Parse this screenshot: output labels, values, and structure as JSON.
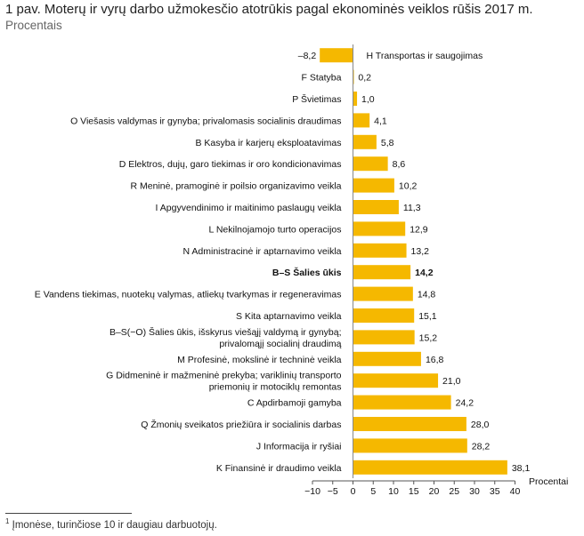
{
  "header": {
    "title": "1 pav. Moterų ir vyrų darbo užmokesčio atotrūkis pagal ekonominės veiklos rūšis 2017 m.",
    "subtitle": "Procentais"
  },
  "footnote": {
    "marker": "1",
    "text": "Įmonėse, turinčiose 10 ir daugiau darbuotojų."
  },
  "chart_data": {
    "type": "bar",
    "orientation": "horizontal",
    "title": "1 pav. Moterų ir vyrų darbo užmokesčio atotrūkis pagal ekonominės veiklos rūšis 2017 m.",
    "subtitle": "Procentais",
    "xlabel": "Procentai",
    "xlim": [
      -10,
      40
    ],
    "xticks": [
      -10,
      -5,
      0,
      5,
      10,
      15,
      20,
      25,
      30,
      35,
      40
    ],
    "tick_labels": [
      "−10",
      "−5",
      "0",
      "5",
      "10",
      "15",
      "20",
      "25",
      "30",
      "35",
      "40"
    ],
    "grid": false,
    "bar_color": "#f5b800",
    "categories": [
      [
        "H Transportas ir saugojimas"
      ],
      [
        "F Statyba"
      ],
      [
        "P Švietimas"
      ],
      [
        "O Viešasis valdymas ir gynyba; privalomasis socialinis draudimas"
      ],
      [
        "B Kasyba ir karjerų eksploatavimas"
      ],
      [
        "D Elektros, dujų, garo tiekimas ir oro kondicionavimas"
      ],
      [
        "R Meninė, pramoginė ir poilsio organizavimo veikla"
      ],
      [
        "I Apgyvendinimo ir maitinimo paslaugų veikla"
      ],
      [
        "L Nekilnojamojo turto operacijos"
      ],
      [
        "N Administracinė ir aptarnavimo veikla"
      ],
      [
        "B–S Šalies ūkis"
      ],
      [
        "E Vandens tiekimas, nuotekų valymas, atliekų tvarkymas ir regeneravimas"
      ],
      [
        "S Kita aptarnavimo veikla"
      ],
      [
        "B–S(−O) Šalies ūkis, išskyrus viešąjį valdymą ir gynybą;",
        "privalomąjį socialinį draudimą"
      ],
      [
        "M Profesinė, mokslinė ir techninė veikla"
      ],
      [
        "G Didmeninė ir mažmeninė prekyba; variklinių transporto",
        "priemonių ir motociklų remontas"
      ],
      [
        "C Apdirbamoji gamyba"
      ],
      [
        "Q Žmonių sveikatos priežiūra ir socialinis darbas"
      ],
      [
        "J Informacija ir ryšiai"
      ],
      [
        "K Finansinė ir draudimo veikla"
      ]
    ],
    "values": [
      -8.2,
      0.2,
      1.0,
      4.1,
      5.8,
      8.6,
      10.2,
      11.3,
      12.9,
      13.2,
      14.2,
      14.8,
      15.1,
      15.2,
      16.8,
      21.0,
      24.2,
      28.0,
      28.2,
      38.1
    ],
    "value_labels": [
      "–8,2",
      "0,2",
      "1,0",
      "4,1",
      "5,8",
      "8,6",
      "10,2",
      "11,3",
      "12,9",
      "13,2",
      "14,2",
      "14,8",
      "15,1",
      "15,2",
      "16,8",
      "21,0",
      "24,2",
      "28,0",
      "28,2",
      "38,1"
    ],
    "highlight": [
      "B–S Šalies ūkis"
    ]
  }
}
